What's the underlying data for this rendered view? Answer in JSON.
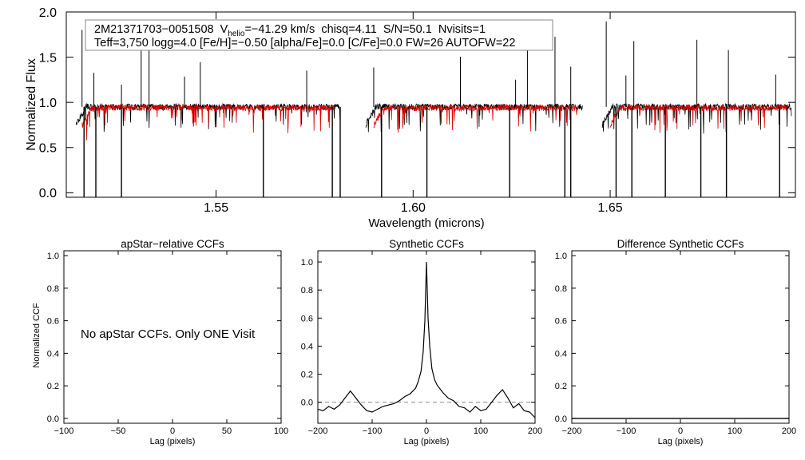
{
  "chart_data": [
    {
      "type": "line",
      "ylabel": "Normalized Flux",
      "xlabel": "Wavelength (microns)",
      "xlim": [
        1.512,
        1.697
      ],
      "ylim": [
        -0.05,
        2.0
      ],
      "xticks": [
        {
          "v": 1.55,
          "label": "1.55"
        },
        {
          "v": 1.6,
          "label": "1.60"
        },
        {
          "v": 1.65,
          "label": "1.65"
        }
      ],
      "yticks": [
        {
          "v": 0.0,
          "label": "0.0"
        },
        {
          "v": 0.5,
          "label": "0.5"
        },
        {
          "v": 1.0,
          "label": "1.0"
        },
        {
          "v": 1.5,
          "label": "1.5"
        },
        {
          "v": 2.0,
          "label": "2.0"
        }
      ],
      "legend": {
        "id_text": "2M21371703−0051508",
        "v_symbol": "V",
        "v_sub": "helio",
        "v_value": "=−41.29 km/s",
        "chisq": "chisq=4.11",
        "sn": "S/N=50.1",
        "nvisits": "Nvisits=1",
        "line2": "Teff=3,750 logg=4.0 [Fe/H]=−0.50 [alpha/Fe]=0.0 [C/Fe]=0.0 FW=26 AUTOFW=22"
      },
      "series": [
        {
          "name": "observed spectrum",
          "color": "#000000",
          "typical_value": 0.95,
          "segments": [
            [
              1.5145,
              1.5815
            ],
            [
              1.588,
              1.643
            ],
            [
              1.648,
              1.696
            ]
          ],
          "spikes_up": [
            1.516,
            1.519,
            1.526,
            1.531,
            1.533,
            1.542,
            1.546,
            1.573,
            1.59,
            1.612,
            1.626,
            1.629,
            1.636,
            1.64,
            1.649,
            1.654,
            1.656,
            1.672,
            1.68,
            1.692
          ],
          "spikes_down": [
            1.5165,
            1.5195,
            1.526,
            1.562,
            1.5795,
            1.5815,
            1.592,
            1.6035,
            1.6245,
            1.6385,
            1.64,
            1.6515,
            1.6555,
            1.664,
            1.673,
            1.6795,
            1.693
          ]
        },
        {
          "name": "synthetic model",
          "color": "#e00000",
          "typical_value": 0.94,
          "segments": [
            [
              1.516,
              1.58
            ],
            [
              1.59,
              1.642
            ],
            [
              1.65,
              1.695
            ]
          ]
        }
      ]
    },
    {
      "type": "line",
      "title": "apStar−relative CCFs",
      "ylabel": "Normalized CCF",
      "xlabel": "Lag (pixels)",
      "xlim": [
        -100,
        100
      ],
      "ylim": [
        -0.03,
        1.03
      ],
      "xticks": [
        {
          "v": -100,
          "label": "−100"
        },
        {
          "v": -50,
          "label": "−50"
        },
        {
          "v": 0,
          "label": "0"
        },
        {
          "v": 50,
          "label": "50"
        },
        {
          "v": 100,
          "label": "100"
        }
      ],
      "yticks": [
        {
          "v": 0.0,
          "label": "0.0"
        },
        {
          "v": 0.2,
          "label": "0.2"
        },
        {
          "v": 0.4,
          "label": "0.4"
        },
        {
          "v": 0.6,
          "label": "0.6"
        },
        {
          "v": 0.8,
          "label": "0.8"
        },
        {
          "v": 1.0,
          "label": "1.0"
        }
      ],
      "annotation": "No apStar CCFs.  Only ONE Visit",
      "series": []
    },
    {
      "type": "line",
      "title": "Synthetic CCFs",
      "xlabel": "Lag (pixels)",
      "xlim": [
        -200,
        200
      ],
      "ylim": [
        -0.15,
        1.08
      ],
      "xticks": [
        {
          "v": -200,
          "label": "−200"
        },
        {
          "v": -100,
          "label": "−100"
        },
        {
          "v": 0,
          "label": "0"
        },
        {
          "v": 100,
          "label": "100"
        },
        {
          "v": 200,
          "label": "200"
        }
      ],
      "yticks": [
        {
          "v": 0.0,
          "label": "0.0"
        },
        {
          "v": 0.2,
          "label": "0.2"
        },
        {
          "v": 0.4,
          "label": "0.4"
        },
        {
          "v": 0.6,
          "label": "0.6"
        },
        {
          "v": 0.8,
          "label": "0.8"
        },
        {
          "v": 1.0,
          "label": "1.0"
        }
      ],
      "reference_line": 0.0,
      "series": [
        {
          "name": "synthetic CCF",
          "color": "#000000",
          "x": [
            -200,
            -190,
            -180,
            -170,
            -160,
            -150,
            -140,
            -130,
            -120,
            -110,
            -100,
            -90,
            -80,
            -70,
            -60,
            -50,
            -40,
            -30,
            -20,
            -15,
            -10,
            -6,
            -3,
            -1,
            0,
            1,
            3,
            6,
            10,
            15,
            20,
            30,
            40,
            50,
            60,
            70,
            80,
            90,
            100,
            110,
            120,
            130,
            140,
            150,
            160,
            170,
            180,
            190,
            200
          ],
          "y": [
            -0.05,
            -0.06,
            -0.03,
            -0.05,
            -0.02,
            0.03,
            0.08,
            0.03,
            -0.02,
            -0.06,
            -0.07,
            -0.05,
            -0.03,
            -0.02,
            -0.01,
            0.01,
            0.04,
            0.06,
            0.1,
            0.15,
            0.22,
            0.36,
            0.58,
            0.85,
            1.0,
            0.86,
            0.6,
            0.4,
            0.24,
            0.16,
            0.12,
            0.07,
            0.03,
            0.01,
            -0.03,
            -0.04,
            -0.07,
            -0.03,
            -0.06,
            -0.05,
            0.0,
            0.05,
            0.09,
            0.03,
            -0.04,
            -0.01,
            -0.06,
            -0.07,
            -0.11
          ]
        }
      ]
    },
    {
      "type": "line",
      "title": "Difference Synthetic CCFs",
      "xlabel": "Lag (pixels)",
      "xlim": [
        -200,
        200
      ],
      "ylim": [
        -0.03,
        1.03
      ],
      "xticks": [
        {
          "v": -200,
          "label": "−200"
        },
        {
          "v": -100,
          "label": "−100"
        },
        {
          "v": 0,
          "label": "0"
        },
        {
          "v": 100,
          "label": "100"
        },
        {
          "v": 200,
          "label": "200"
        }
      ],
      "yticks": [
        {
          "v": 0.0,
          "label": "0.0"
        },
        {
          "v": 0.2,
          "label": "0.2"
        },
        {
          "v": 0.4,
          "label": "0.4"
        },
        {
          "v": 0.6,
          "label": "0.6"
        },
        {
          "v": 0.8,
          "label": "0.8"
        },
        {
          "v": 1.0,
          "label": "1.0"
        }
      ],
      "series": [
        {
          "name": "difference CCF",
          "color": "#000000",
          "x": [
            -200,
            200
          ],
          "y": [
            0.0,
            0.0
          ]
        }
      ]
    }
  ]
}
